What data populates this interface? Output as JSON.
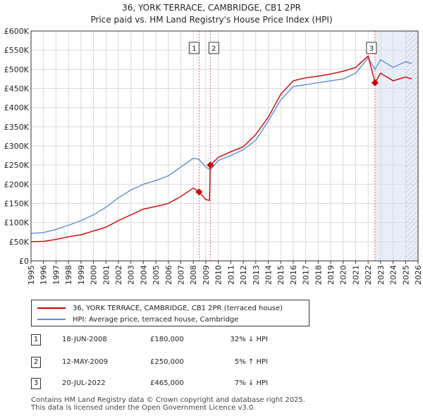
{
  "title": "36, YORK TERRACE, CAMBRIDGE, CB1 2PR",
  "subtitle": "Price paid vs. HM Land Registry's House Price Index (HPI)",
  "colors": {
    "property": "#cc0000",
    "hpi": "#5b8fd0",
    "shade": "#e8eef8",
    "vline": "#dd6677",
    "hatch": "#b9bcc3"
  },
  "legend": {
    "property": "36, YORK TERRACE, CAMBRIDGE, CB1 2PR (terraced house)",
    "hpi": "HPI: Average price, terraced house, Cambridge"
  },
  "transactions": [
    {
      "num": "1",
      "date": "18-JUN-2008",
      "price": "£180,000",
      "hpi": "32% ↓ HPI"
    },
    {
      "num": "2",
      "date": "12-MAY-2009",
      "price": "£250,000",
      "hpi": "5% ↑ HPI"
    },
    {
      "num": "3",
      "date": "20-JUL-2022",
      "price": "£465,000",
      "hpi": "7% ↓ HPI"
    }
  ],
  "footer": {
    "line1": "Contains HM Land Registry data © Crown copyright and database right 2025.",
    "line2": "This data is licensed under the Open Government Licence v3.0."
  },
  "chart_data": {
    "type": "line",
    "title": "36, YORK TERRACE, CAMBRIDGE, CB1 2PR",
    "subtitle": "Price paid vs. HM Land Registry's House Price Index (HPI)",
    "xlim": [
      1995,
      2026
    ],
    "ylim": [
      0,
      600000
    ],
    "x_ticks": [
      "1995",
      "1996",
      "1997",
      "1998",
      "1999",
      "2000",
      "2001",
      "2002",
      "2003",
      "2004",
      "2005",
      "2006",
      "2007",
      "2008",
      "2009",
      "2010",
      "2011",
      "2012",
      "2013",
      "2014",
      "2015",
      "2016",
      "2017",
      "2018",
      "2019",
      "2020",
      "2021",
      "2022",
      "2023",
      "2024",
      "2025",
      "2026"
    ],
    "y_ticks": [
      {
        "value": 0,
        "label": "£0"
      },
      {
        "value": 50000,
        "label": "£50K"
      },
      {
        "value": 100000,
        "label": "£100K"
      },
      {
        "value": 150000,
        "label": "£150K"
      },
      {
        "value": 200000,
        "label": "£200K"
      },
      {
        "value": 250000,
        "label": "£250K"
      },
      {
        "value": 300000,
        "label": "£300K"
      },
      {
        "value": 350000,
        "label": "£350K"
      },
      {
        "value": 400000,
        "label": "£400K"
      },
      {
        "value": 450000,
        "label": "£450K"
      },
      {
        "value": 500000,
        "label": "£500K"
      },
      {
        "value": 550000,
        "label": "£550K"
      },
      {
        "value": 600000,
        "label": "£600K"
      }
    ],
    "grid": true,
    "shaded_range": [
      2022.55,
      2026
    ],
    "hatched_range": [
      2025.0,
      2026
    ],
    "sales": [
      {
        "label": "1",
        "x": 2008.46,
        "y": 180000
      },
      {
        "label": "2",
        "x": 2009.36,
        "y": 250000
      },
      {
        "label": "3",
        "x": 2022.55,
        "y": 465000
      }
    ],
    "series": [
      {
        "name": "36, YORK TERRACE, CAMBRIDGE, CB1 2PR (terraced house)",
        "points": [
          [
            1995,
            50000
          ],
          [
            1996,
            51000
          ],
          [
            1997,
            56000
          ],
          [
            1998,
            63000
          ],
          [
            1999,
            68000
          ],
          [
            2000,
            78000
          ],
          [
            2001,
            88000
          ],
          [
            2002,
            105000
          ],
          [
            2003,
            120000
          ],
          [
            2004,
            135000
          ],
          [
            2005,
            142000
          ],
          [
            2006,
            150000
          ],
          [
            2007,
            168000
          ],
          [
            2008,
            190000
          ],
          [
            2008.46,
            180000
          ],
          [
            2009.0,
            160000
          ],
          [
            2009.3,
            158000
          ],
          [
            2009.36,
            250000
          ],
          [
            2010,
            270000
          ],
          [
            2011,
            285000
          ],
          [
            2012,
            298000
          ],
          [
            2013,
            330000
          ],
          [
            2014,
            375000
          ],
          [
            2015,
            435000
          ],
          [
            2016,
            470000
          ],
          [
            2017,
            478000
          ],
          [
            2018,
            482000
          ],
          [
            2019,
            488000
          ],
          [
            2020,
            495000
          ],
          [
            2021,
            505000
          ],
          [
            2022,
            535000
          ],
          [
            2022.55,
            465000
          ],
          [
            2023,
            490000
          ],
          [
            2024,
            470000
          ],
          [
            2025,
            480000
          ],
          [
            2025.5,
            475000
          ]
        ]
      },
      {
        "name": "HPI: Average price, terraced house, Cambridge",
        "points": [
          [
            1995,
            72000
          ],
          [
            1996,
            74000
          ],
          [
            1997,
            82000
          ],
          [
            1998,
            93000
          ],
          [
            1999,
            105000
          ],
          [
            2000,
            120000
          ],
          [
            2001,
            140000
          ],
          [
            2002,
            165000
          ],
          [
            2003,
            185000
          ],
          [
            2004,
            200000
          ],
          [
            2005,
            210000
          ],
          [
            2006,
            222000
          ],
          [
            2007,
            245000
          ],
          [
            2008,
            268000
          ],
          [
            2008.46,
            265000
          ],
          [
            2009.0,
            245000
          ],
          [
            2009.36,
            238000
          ],
          [
            2010,
            262000
          ],
          [
            2011,
            275000
          ],
          [
            2012,
            290000
          ],
          [
            2013,
            315000
          ],
          [
            2014,
            365000
          ],
          [
            2015,
            420000
          ],
          [
            2016,
            455000
          ],
          [
            2017,
            460000
          ],
          [
            2018,
            465000
          ],
          [
            2019,
            470000
          ],
          [
            2020,
            475000
          ],
          [
            2021,
            490000
          ],
          [
            2022,
            530000
          ],
          [
            2022.55,
            500000
          ],
          [
            2023,
            525000
          ],
          [
            2024,
            505000
          ],
          [
            2025,
            520000
          ],
          [
            2025.5,
            515000
          ]
        ]
      }
    ]
  }
}
